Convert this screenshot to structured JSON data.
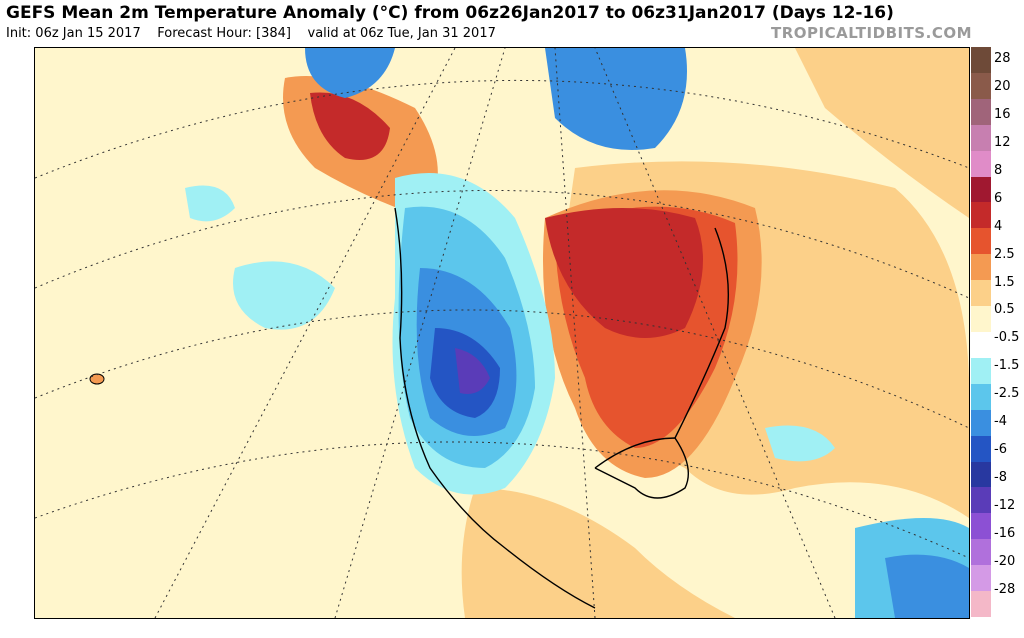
{
  "header": {
    "title": "GEFS Mean 2m Temperature Anomaly (°C) from 06z26Jan2017 to 06z31Jan2017 (Days 12-16)",
    "init": "Init: 06z Jan 15 2017",
    "forecast_hour": "Forecast Hour: [384]",
    "valid": "valid at 06z Tue, Jan 31 2017",
    "brand": "TROPICALTIDBITS.COM"
  },
  "legend": {
    "labels": [
      "28",
      "20",
      "16",
      "12",
      "8",
      "6",
      "4",
      "2.5",
      "1.5",
      "0.5",
      "-0.5",
      "-1.5",
      "-2.5",
      "-4",
      "-6",
      "-8",
      "-12",
      "-16",
      "-20",
      "-28"
    ],
    "colors": [
      "#6e4a38",
      "#8a5a4a",
      "#a0647a",
      "#c77fb0",
      "#e08cc8",
      "#a01830",
      "#c42a2a",
      "#e6542e",
      "#f49a52",
      "#fcd089",
      "#fff6cc",
      "#ffffff",
      "#a0f0f4",
      "#5cc6ec",
      "#3a8fe0",
      "#2455c4",
      "#2838a0",
      "#5a3cb8",
      "#8c50d4",
      "#b070dc",
      "#d49ae6",
      "#f4b8c8"
    ]
  },
  "colors": {
    "warm_strong": "#c42a2a",
    "warm_mid": "#e6542e",
    "warm_light": "#f49a52",
    "neutral": "#fff6cc",
    "cool_light": "#a0f0f4",
    "cool_mid": "#3a8fe0",
    "cool_strong": "#2455c4",
    "cold_purple": "#5a3cb8"
  }
}
